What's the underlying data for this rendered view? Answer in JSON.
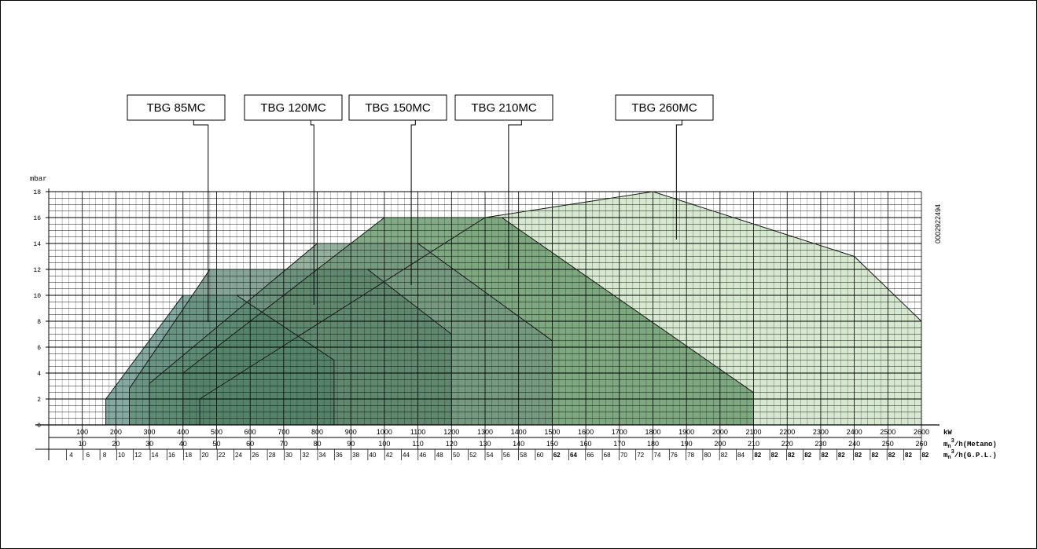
{
  "chart_data": {
    "type": "area",
    "title": "",
    "ylabel": "mbar",
    "ylim": [
      0,
      18
    ],
    "y_ticks": [
      0,
      2,
      4,
      6,
      8,
      10,
      12,
      14,
      16,
      18
    ],
    "xlabel": "kW",
    "xlim": [
      0,
      2600
    ],
    "kw_ticks": [
      100,
      200,
      300,
      400,
      500,
      600,
      700,
      800,
      900,
      1000,
      1100,
      1200,
      1300,
      1400,
      1500,
      1600,
      1700,
      1800,
      1900,
      2000,
      2100,
      2200,
      2300,
      2400,
      2500,
      2600
    ],
    "secondary_axes": [
      {
        "label": "m",
        "sub": "n",
        "sup": "3",
        "suffix": "/h(Metano)",
        "ticks": [
          "10",
          "20",
          "30",
          "40",
          "50",
          "60",
          "70",
          "80",
          "90",
          "100",
          "110",
          "120",
          "130",
          "140",
          "150",
          "160",
          "170",
          "180",
          "190",
          "200",
          "210",
          "220",
          "230",
          "240",
          "250",
          "260"
        ]
      },
      {
        "label": "m",
        "sub": "n",
        "sup": "3",
        "suffix": "/h(G.P.L.)",
        "ticks": [
          "4",
          "6",
          "8",
          "10",
          "12",
          "14",
          "16",
          "18",
          "20",
          "22",
          "24",
          "26",
          "28",
          "30",
          "32",
          "34",
          "36",
          "38",
          "40",
          "42",
          "44",
          "46",
          "48",
          "50",
          "52",
          "54",
          "56",
          "58",
          "60",
          "62",
          "64",
          "66",
          "68",
          "70",
          "72",
          "74",
          "76",
          "78",
          "80",
          "82",
          "84",
          "82",
          "82",
          "82",
          "82",
          "82",
          "82",
          "82",
          "82",
          "82",
          "82",
          "82"
        ]
      }
    ],
    "series": [
      {
        "name": "TBG 260MC",
        "color": "#cfe4c8",
        "points": [
          [
            450,
            0
          ],
          [
            450,
            2
          ],
          [
            1300,
            16
          ],
          [
            1800,
            18
          ],
          [
            2400,
            13
          ],
          [
            2600,
            8
          ],
          [
            2600,
            0
          ]
        ],
        "callout_x": 1870
      },
      {
        "name": "TBG 210MC",
        "color": "#8bb588",
        "points": [
          [
            400,
            0
          ],
          [
            400,
            4
          ],
          [
            1000,
            16
          ],
          [
            1350,
            16
          ],
          [
            2100,
            2.5
          ],
          [
            2100,
            0
          ]
        ],
        "callout_x": 1370
      },
      {
        "name": "TBG 150MC",
        "color": "#a9bfb1",
        "points": [
          [
            300,
            0
          ],
          [
            300,
            3.2
          ],
          [
            800,
            14
          ],
          [
            1100,
            14
          ],
          [
            1500,
            6.5
          ],
          [
            1500,
            0
          ]
        ],
        "callout_x": 1080
      },
      {
        "name": "TBG 120MC",
        "color": "#8fa9a4",
        "points": [
          [
            240,
            0
          ],
          [
            240,
            2.8
          ],
          [
            480,
            12
          ],
          [
            950,
            12
          ],
          [
            1200,
            7
          ],
          [
            1200,
            0
          ]
        ],
        "callout_x": 790
      },
      {
        "name": "TBG 85MC",
        "color": "#8db3b4",
        "points": [
          [
            170,
            0
          ],
          [
            170,
            2
          ],
          [
            400,
            10
          ],
          [
            560,
            10
          ],
          [
            850,
            5
          ],
          [
            850,
            0
          ]
        ],
        "callout_x": 475
      }
    ],
    "dark_overlay_color": "#3f7350",
    "code_label": "0002922494"
  }
}
